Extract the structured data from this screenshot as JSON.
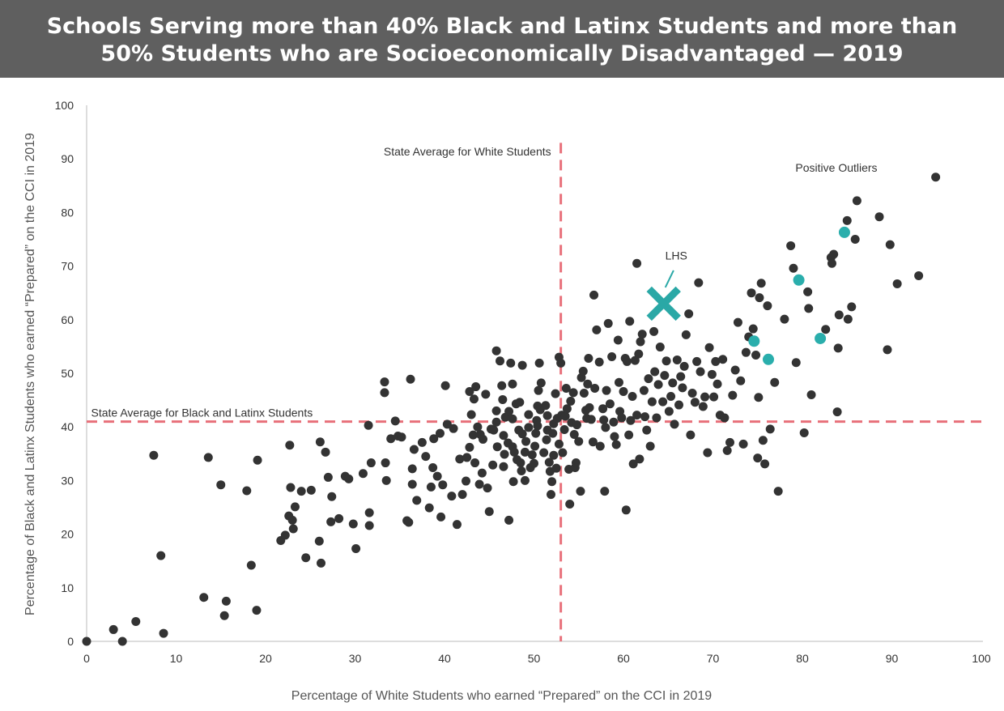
{
  "title": {
    "line1": "Schools Serving more than 40% Black and Latinx Students and more than",
    "line2": "50% Students who are Socioeconomically Disadvantaged — 2019"
  },
  "chart_data": {
    "type": "scatter",
    "xlabel": "Percentage of White Students who earned “Prepared” on the CCI in 2019",
    "ylabel": "Percentage of Black and Latinx Students who earned “Prepared” on the CCI in 2019",
    "xlim": [
      0,
      100
    ],
    "ylim": [
      0,
      100
    ],
    "xticks": [
      "0",
      "10",
      "20",
      "30",
      "40",
      "50",
      "60",
      "70",
      "80",
      "90",
      "100"
    ],
    "yticks": [
      "0",
      "10",
      "20",
      "30",
      "40",
      "50",
      "60",
      "70",
      "80",
      "90",
      "100"
    ],
    "grid": false,
    "colors": {
      "points": "#333333",
      "outliers": "#2aaeac",
      "lhs": "#2aa8a6",
      "reference_lines": "#e8707a",
      "axis": "#bbbbbb"
    },
    "reference_lines": [
      {
        "orientation": "vertical",
        "value": 53,
        "label": "State Average for White Students"
      },
      {
        "orientation": "horizontal",
        "value": 41,
        "label": "State Average for Black and Latinx Students"
      }
    ],
    "annotations": {
      "outliers_label": "Positive Outliers",
      "lhs_label": "LHS"
    },
    "lhs": {
      "x": 64.5,
      "y": 63
    },
    "outliers": [
      {
        "x": 84.7,
        "y": 76.3
      },
      {
        "x": 79.6,
        "y": 67.4
      },
      {
        "x": 74.6,
        "y": 56
      },
      {
        "x": 76.2,
        "y": 52.6
      },
      {
        "x": 82,
        "y": 56.5
      }
    ],
    "points": [
      [
        0,
        0
      ],
      [
        3,
        2.2
      ],
      [
        4,
        0
      ],
      [
        5.5,
        3.7
      ],
      [
        8.6,
        1.5
      ],
      [
        7.5,
        34.7
      ],
      [
        8.3,
        16
      ],
      [
        13.1,
        8.2
      ],
      [
        15.6,
        7.5
      ],
      [
        15.4,
        4.8
      ],
      [
        13.6,
        34.3
      ],
      [
        15,
        29.2
      ],
      [
        17.9,
        28.1
      ],
      [
        18.4,
        14.2
      ],
      [
        19,
        5.8
      ],
      [
        19.1,
        33.8
      ],
      [
        21.7,
        18.8
      ],
      [
        22.2,
        19.8
      ],
      [
        22.6,
        23.4
      ],
      [
        22.7,
        36.6
      ],
      [
        22.8,
        28.7
      ],
      [
        23,
        22.6
      ],
      [
        23.1,
        21
      ],
      [
        23.3,
        25.1
      ],
      [
        24,
        28
      ],
      [
        24.5,
        15.6
      ],
      [
        25.1,
        28.2
      ],
      [
        26,
        18.7
      ],
      [
        26.2,
        14.6
      ],
      [
        26.1,
        37.2
      ],
      [
        26.7,
        35.3
      ],
      [
        27,
        30.6
      ],
      [
        27.3,
        22.3
      ],
      [
        27.4,
        27
      ],
      [
        28.2,
        22.9
      ],
      [
        28.9,
        30.8
      ],
      [
        29.3,
        30.3
      ],
      [
        29.8,
        21.9
      ],
      [
        30.1,
        17.3
      ],
      [
        30.9,
        31.3
      ],
      [
        31.6,
        24
      ],
      [
        31.6,
        21.6
      ],
      [
        31.5,
        40.3
      ],
      [
        31.8,
        33.3
      ],
      [
        33.3,
        48.4
      ],
      [
        33.3,
        46.4
      ],
      [
        33.4,
        33.3
      ],
      [
        33.5,
        30
      ],
      [
        34.5,
        41.1
      ],
      [
        34,
        37.8
      ],
      [
        34.8,
        38.3
      ],
      [
        35.2,
        38.1
      ],
      [
        35.8,
        22.5
      ],
      [
        36,
        22.2
      ],
      [
        36.2,
        48.9
      ],
      [
        36.4,
        32.2
      ],
      [
        36.6,
        35.8
      ],
      [
        36.4,
        29.3
      ],
      [
        36.9,
        26.3
      ],
      [
        37.5,
        37.1
      ],
      [
        37.9,
        34.5
      ],
      [
        38.3,
        24.9
      ],
      [
        38.5,
        28.8
      ],
      [
        38.7,
        32.4
      ],
      [
        38.8,
        37.8
      ],
      [
        39.2,
        30.8
      ],
      [
        39.5,
        38.8
      ],
      [
        39.6,
        23.2
      ],
      [
        39.8,
        29.2
      ],
      [
        40.1,
        47.7
      ],
      [
        40.3,
        40.5
      ],
      [
        40.8,
        27.1
      ],
      [
        41,
        39.7
      ],
      [
        41.4,
        21.8
      ],
      [
        41.7,
        34
      ],
      [
        42,
        27.4
      ],
      [
        42.4,
        29.9
      ],
      [
        42.5,
        34.3
      ],
      [
        42.8,
        46.6
      ],
      [
        42.8,
        36.2
      ],
      [
        43,
        42.3
      ],
      [
        43.2,
        38.5
      ],
      [
        43.3,
        45.2
      ],
      [
        43.4,
        33.3
      ],
      [
        43.5,
        47.5
      ],
      [
        43.7,
        40
      ],
      [
        43.9,
        29.3
      ],
      [
        44,
        38.6
      ],
      [
        44.2,
        31.4
      ],
      [
        44.3,
        37.7
      ],
      [
        44.6,
        46.1
      ],
      [
        44.8,
        28.6
      ],
      [
        45,
        24.2
      ],
      [
        45.2,
        39.6
      ],
      [
        45.4,
        32.9
      ],
      [
        45.5,
        39.4
      ],
      [
        45.8,
        54.2
      ],
      [
        45.8,
        40.9
      ],
      [
        45.8,
        43
      ],
      [
        45.9,
        36.3
      ],
      [
        46.2,
        52.3
      ],
      [
        46.4,
        47.7
      ],
      [
        46.5,
        45.1
      ],
      [
        46.6,
        38.4
      ],
      [
        46.6,
        32.6
      ],
      [
        46.7,
        34.9
      ],
      [
        46.8,
        41.8
      ],
      [
        47.1,
        37
      ],
      [
        47.2,
        42.9
      ],
      [
        47.2,
        22.6
      ],
      [
        47.4,
        51.9
      ],
      [
        47.6,
        48
      ],
      [
        47.6,
        41.5
      ],
      [
        47.6,
        36.3
      ],
      [
        47.7,
        29.8
      ],
      [
        47.8,
        35.3
      ],
      [
        48,
        44.3
      ],
      [
        48.1,
        33.9
      ],
      [
        48.3,
        39.4
      ],
      [
        48.4,
        44.6
      ],
      [
        48.5,
        33.3
      ],
      [
        48.6,
        31.8
      ],
      [
        48.7,
        38.7
      ],
      [
        48.7,
        51.5
      ],
      [
        49,
        30
      ],
      [
        49,
        35.3
      ],
      [
        49.1,
        37.3
      ],
      [
        49.4,
        39.9
      ],
      [
        49.4,
        42.3
      ],
      [
        49.6,
        32.4
      ],
      [
        49.8,
        34.8
      ],
      [
        50,
        33.2
      ],
      [
        50.1,
        36.4
      ],
      [
        50.2,
        38.8
      ],
      [
        50.3,
        41.2
      ],
      [
        50.4,
        40.2
      ],
      [
        50.4,
        43.9
      ],
      [
        50.5,
        46.8
      ],
      [
        50.6,
        51.9
      ],
      [
        50.7,
        43.2
      ],
      [
        50.8,
        48.2
      ],
      [
        51.1,
        35.2
      ],
      [
        51.3,
        44
      ],
      [
        51.4,
        37.6
      ],
      [
        51.5,
        42.1
      ],
      [
        51.5,
        39.4
      ],
      [
        51.7,
        33.4
      ],
      [
        51.8,
        31.7
      ],
      [
        51.9,
        27.4
      ],
      [
        52,
        29.8
      ],
      [
        52.1,
        38.8
      ],
      [
        52.2,
        34.7
      ],
      [
        52.2,
        40.6
      ],
      [
        52.4,
        46.2
      ],
      [
        52.5,
        32.3
      ],
      [
        52.6,
        41.6
      ],
      [
        52.8,
        36.8
      ],
      [
        52.8,
        53
      ],
      [
        53,
        51.9
      ],
      [
        53.1,
        42.2
      ],
      [
        53.2,
        35.2
      ],
      [
        53.4,
        39.5
      ],
      [
        53.5,
        42
      ],
      [
        53.6,
        47.2
      ],
      [
        53.7,
        43.4
      ],
      [
        53.9,
        32.1
      ],
      [
        54,
        25.6
      ],
      [
        54.1,
        44.8
      ],
      [
        54.2,
        40.8
      ],
      [
        54.4,
        46.4
      ],
      [
        54.5,
        38.6
      ],
      [
        54.6,
        32.4
      ],
      [
        54.7,
        33.3
      ],
      [
        54.8,
        40.4
      ],
      [
        55,
        37.3
      ],
      [
        55.2,
        28
      ],
      [
        55.3,
        49.2
      ],
      [
        55.5,
        50.4
      ],
      [
        55.6,
        46.3
      ],
      [
        55.8,
        43.1
      ],
      [
        55.9,
        41.6
      ],
      [
        56,
        48
      ],
      [
        56.1,
        52.8
      ],
      [
        56.2,
        43.6
      ],
      [
        56.4,
        41.4
      ],
      [
        56.6,
        37.2
      ],
      [
        56.7,
        64.6
      ],
      [
        56.8,
        47.2
      ],
      [
        57,
        58.1
      ],
      [
        57.3,
        52.1
      ],
      [
        57.4,
        36.4
      ],
      [
        57.7,
        43.4
      ],
      [
        57.8,
        41.3
      ],
      [
        57.9,
        28
      ],
      [
        58,
        39.9
      ],
      [
        58.1,
        46.8
      ],
      [
        58.3,
        59.3
      ],
      [
        58.5,
        44.3
      ],
      [
        58.7,
        53.1
      ],
      [
        58.9,
        40.9
      ],
      [
        59,
        38.2
      ],
      [
        59.2,
        36.7
      ],
      [
        59.4,
        56.2
      ],
      [
        59.5,
        48.3
      ],
      [
        59.6,
        42.9
      ],
      [
        59.8,
        41.7
      ],
      [
        60,
        46.6
      ],
      [
        60.2,
        52.8
      ],
      [
        60.3,
        24.5
      ],
      [
        60.4,
        52.2
      ],
      [
        60.6,
        38.5
      ],
      [
        60.7,
        59.7
      ],
      [
        60.8,
        41.2
      ],
      [
        61,
        45.7
      ],
      [
        61.1,
        33.1
      ],
      [
        61.3,
        52.4
      ],
      [
        61.5,
        70.5
      ],
      [
        61.5,
        42.2
      ],
      [
        61.7,
        53.6
      ],
      [
        61.8,
        34
      ],
      [
        61.9,
        55.9
      ],
      [
        62.1,
        57.3
      ],
      [
        62.3,
        46.8
      ],
      [
        62.4,
        41.9
      ],
      [
        62.6,
        39.4
      ],
      [
        62.8,
        49
      ],
      [
        63,
        36.4
      ],
      [
        63.2,
        44.7
      ],
      [
        63.4,
        57.8
      ],
      [
        63.5,
        50.3
      ],
      [
        63.7,
        41.7
      ],
      [
        63.9,
        47.9
      ],
      [
        64.1,
        54.9
      ],
      [
        64.4,
        44.7
      ],
      [
        64.6,
        49.6
      ],
      [
        64.8,
        52.3
      ],
      [
        65.1,
        42.9
      ],
      [
        65.3,
        45.7
      ],
      [
        65.5,
        48.2
      ],
      [
        65.7,
        40.5
      ],
      [
        66,
        52.5
      ],
      [
        66.2,
        44.1
      ],
      [
        66.4,
        49.4
      ],
      [
        66.6,
        47.3
      ],
      [
        66.8,
        51.3
      ],
      [
        67,
        57.2
      ],
      [
        67.3,
        61.1
      ],
      [
        67.5,
        38.5
      ],
      [
        67.7,
        46.3
      ],
      [
        68,
        44.6
      ],
      [
        68.2,
        52.2
      ],
      [
        68.4,
        66.9
      ],
      [
        68.6,
        50.3
      ],
      [
        68.9,
        43.8
      ],
      [
        69.1,
        45.6
      ],
      [
        69.4,
        35.2
      ],
      [
        69.6,
        54.8
      ],
      [
        69.9,
        49.8
      ],
      [
        70.1,
        45.6
      ],
      [
        70.3,
        52.2
      ],
      [
        70.5,
        48
      ],
      [
        70.8,
        42.2
      ],
      [
        71.1,
        52.6
      ],
      [
        71.3,
        41.7
      ],
      [
        71.6,
        35.6
      ],
      [
        71.9,
        37.1
      ],
      [
        72.2,
        45.9
      ],
      [
        72.5,
        50.6
      ],
      [
        72.8,
        59.5
      ],
      [
        73.1,
        48.6
      ],
      [
        73.4,
        36.8
      ],
      [
        73.7,
        53.9
      ],
      [
        74,
        56.8
      ],
      [
        74.3,
        65
      ],
      [
        74.5,
        58.3
      ],
      [
        74.8,
        53.4
      ],
      [
        75,
        34.2
      ],
      [
        75.1,
        45.5
      ],
      [
        75.2,
        64.1
      ],
      [
        75.4,
        66.8
      ],
      [
        75.6,
        37.5
      ],
      [
        75.8,
        33.1
      ],
      [
        76.1,
        62.6
      ],
      [
        76.4,
        39.6
      ],
      [
        76.9,
        48.3
      ],
      [
        77.3,
        28
      ],
      [
        78,
        60.1
      ],
      [
        78.7,
        73.8
      ],
      [
        79,
        69.6
      ],
      [
        79.3,
        52
      ],
      [
        80.2,
        38.9
      ],
      [
        80.6,
        65.2
      ],
      [
        80.7,
        62.1
      ],
      [
        81,
        46
      ],
      [
        82.6,
        58.2
      ],
      [
        83.2,
        71.6
      ],
      [
        83.3,
        70.5
      ],
      [
        83.5,
        72.2
      ],
      [
        83.9,
        42.8
      ],
      [
        84,
        54.7
      ],
      [
        84.1,
        60.9
      ],
      [
        85,
        78.5
      ],
      [
        85.1,
        60.1
      ],
      [
        85.5,
        62.4
      ],
      [
        85.9,
        75
      ],
      [
        86.1,
        82.2
      ],
      [
        88.6,
        79.2
      ],
      [
        89.5,
        54.4
      ],
      [
        89.8,
        74
      ],
      [
        90.6,
        66.7
      ],
      [
        93,
        68.2
      ],
      [
        94.9,
        86.6
      ]
    ]
  }
}
